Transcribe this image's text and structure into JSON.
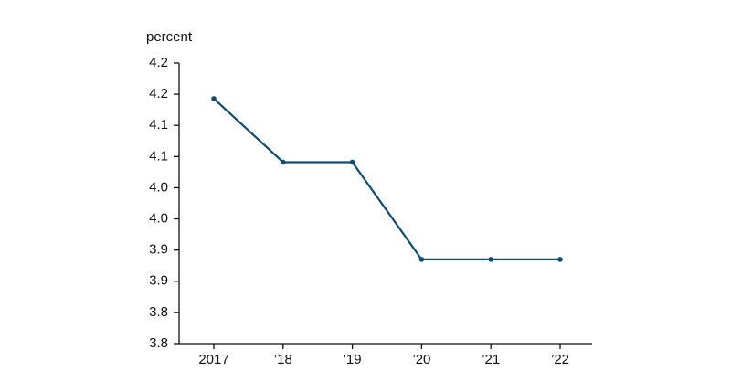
{
  "chart_data": {
    "type": "line",
    "y_label": "percent",
    "categories": [
      "2017",
      "’18",
      "’19",
      "’20",
      "’21",
      "’22"
    ],
    "series": [
      {
        "color": "#0f4c75",
        "values": [
          4.143,
          4.041,
          4.041,
          3.885,
          3.885,
          3.885
        ]
      }
    ],
    "ylim": [
      3.75,
      4.2
    ],
    "yticks": [
      {
        "value": 3.75,
        "label": "3.8"
      },
      {
        "value": 3.8,
        "label": "3.8"
      },
      {
        "value": 3.85,
        "label": "3.9"
      },
      {
        "value": 3.9,
        "label": "3.9"
      },
      {
        "value": 3.95,
        "label": "4.0"
      },
      {
        "value": 4.0,
        "label": "4.0"
      },
      {
        "value": 4.05,
        "label": "4.1"
      },
      {
        "value": 4.1,
        "label": "4.1"
      },
      {
        "value": 4.15,
        "label": "4.2"
      },
      {
        "value": 4.2,
        "label": "4.2"
      }
    ],
    "grid": false
  }
}
